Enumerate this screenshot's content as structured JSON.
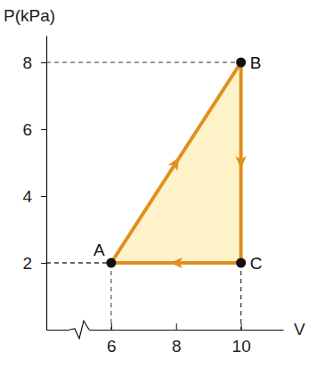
{
  "chart_data": {
    "type": "line",
    "x_label": "V",
    "y_label": "P(kPa)",
    "x": [
      6,
      10,
      10,
      6
    ],
    "values": [
      2,
      8,
      2,
      2
    ],
    "point_labels": [
      "A",
      "B",
      "C",
      null
    ],
    "color": "#e0901e",
    "xlim": [
      4,
      11.3
    ],
    "xticks": [
      6,
      8,
      10
    ],
    "ylim": [
      0,
      8.8
    ],
    "yticks": [
      2,
      4,
      6,
      8
    ],
    "grid": false
  }
}
